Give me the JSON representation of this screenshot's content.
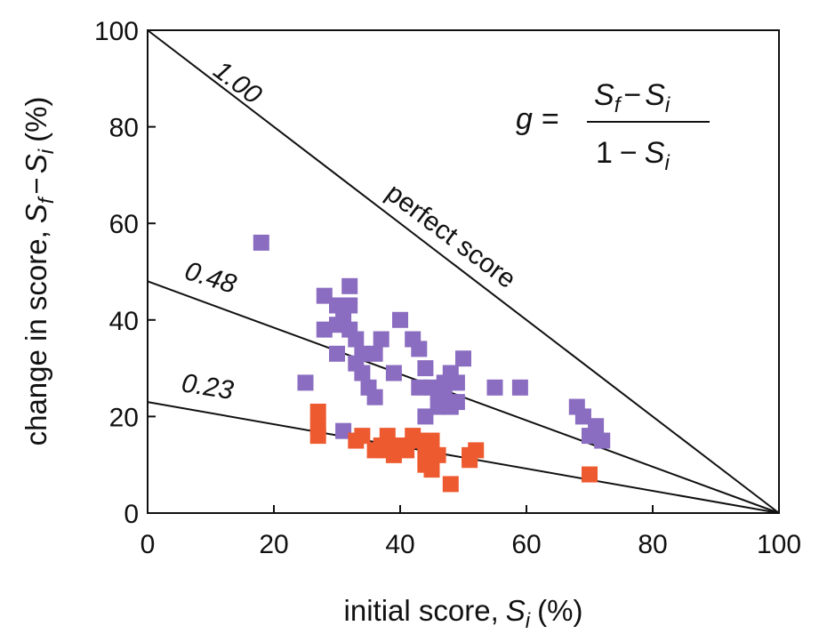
{
  "chart_data": {
    "type": "scatter",
    "xlabel_prefix": "initial score,",
    "xlabel_var": "S",
    "xlabel_sub": "i",
    "xlabel_suffix": "(%)",
    "ylabel_prefix": "change in score,",
    "ylabel_var1": "S",
    "ylabel_sub1": "f",
    "ylabel_minus": "−",
    "ylabel_var2": "S",
    "ylabel_sub2": "i",
    "ylabel_suffix": "(%)",
    "xlim": [
      0,
      100
    ],
    "ylim": [
      0,
      100
    ],
    "x_ticks": [
      0,
      20,
      40,
      60,
      80,
      100
    ],
    "y_ticks": [
      0,
      20,
      40,
      60,
      80,
      100
    ],
    "grid": false,
    "formula": {
      "lhs": "g =",
      "num_var1": "S",
      "num_sub1": "f",
      "num_op": "−",
      "num_var2": "S",
      "num_sub2": "i",
      "den_one": "1",
      "den_op": "−",
      "den_var": "S",
      "den_sub": "i"
    },
    "reference_lines": [
      {
        "g": 1.0,
        "label": "1.00"
      },
      {
        "g": 0.48,
        "label": "0.48"
      },
      {
        "g": 0.23,
        "label": "0.23"
      }
    ],
    "perfect_label": "perfect score",
    "series": [
      {
        "color": "#8a6cc0",
        "points": [
          [
            18,
            56
          ],
          [
            25,
            27
          ],
          [
            28,
            45
          ],
          [
            28,
            38
          ],
          [
            30,
            43
          ],
          [
            30,
            39
          ],
          [
            31,
            41
          ],
          [
            30,
            33
          ],
          [
            31,
            17
          ],
          [
            32,
            47
          ],
          [
            32,
            43
          ],
          [
            32,
            38
          ],
          [
            33,
            36
          ],
          [
            33,
            31
          ],
          [
            34,
            33
          ],
          [
            34,
            29
          ],
          [
            35,
            26
          ],
          [
            36,
            24
          ],
          [
            36,
            33
          ],
          [
            37,
            36
          ],
          [
            39,
            29
          ],
          [
            40,
            40
          ],
          [
            42,
            36
          ],
          [
            43,
            34
          ],
          [
            43,
            26
          ],
          [
            44,
            20
          ],
          [
            44,
            30
          ],
          [
            45,
            26
          ],
          [
            46,
            22
          ],
          [
            46,
            25
          ],
          [
            47,
            27
          ],
          [
            47,
            24
          ],
          [
            48,
            29
          ],
          [
            48,
            22
          ],
          [
            49,
            27
          ],
          [
            49,
            23
          ],
          [
            50,
            32
          ],
          [
            55,
            26
          ],
          [
            59,
            26
          ],
          [
            68,
            22
          ],
          [
            69,
            20
          ],
          [
            70,
            16
          ],
          [
            71,
            18
          ],
          [
            72,
            15
          ]
        ]
      },
      {
        "color": "#ee5a30",
        "points": [
          [
            27,
            21
          ],
          [
            27,
            18
          ],
          [
            27,
            16
          ],
          [
            33,
            15
          ],
          [
            34,
            16
          ],
          [
            36,
            13
          ],
          [
            37,
            14
          ],
          [
            38,
            16
          ],
          [
            38,
            13
          ],
          [
            39,
            12
          ],
          [
            40,
            14
          ],
          [
            41,
            13
          ],
          [
            42,
            16
          ],
          [
            43,
            15
          ],
          [
            44,
            14
          ],
          [
            44,
            11
          ],
          [
            44,
            10
          ],
          [
            45,
            15
          ],
          [
            45,
            12
          ],
          [
            45,
            9
          ],
          [
            46,
            12
          ],
          [
            48,
            6
          ],
          [
            51,
            11
          ],
          [
            51,
            12
          ],
          [
            52,
            13
          ],
          [
            70,
            8
          ]
        ]
      }
    ]
  }
}
